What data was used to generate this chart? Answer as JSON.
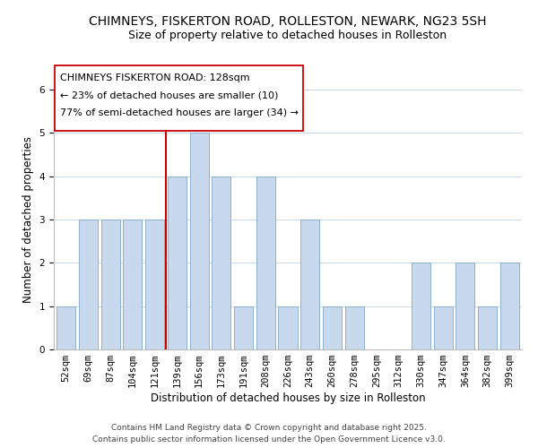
{
  "title": "CHIMNEYS, FISKERTON ROAD, ROLLESTON, NEWARK, NG23 5SH",
  "subtitle": "Size of property relative to detached houses in Rolleston",
  "xlabel": "Distribution of detached houses by size in Rolleston",
  "ylabel": "Number of detached properties",
  "categories": [
    "52sqm",
    "69sqm",
    "87sqm",
    "104sqm",
    "121sqm",
    "139sqm",
    "156sqm",
    "173sqm",
    "191sqm",
    "208sqm",
    "226sqm",
    "243sqm",
    "260sqm",
    "278sqm",
    "295sqm",
    "312sqm",
    "330sqm",
    "347sqm",
    "364sqm",
    "382sqm",
    "399sqm"
  ],
  "values": [
    1,
    3,
    3,
    3,
    3,
    4,
    5,
    4,
    1,
    4,
    1,
    3,
    1,
    1,
    0,
    0,
    2,
    1,
    2,
    1,
    2
  ],
  "bar_color": "#c8d9ed",
  "bar_edge_color": "#7fa8cc",
  "vline_x_index": 4.5,
  "vline_color": "#cc0000",
  "annotation_text_line1": "CHIMNEYS FISKERTON ROAD: 128sqm",
  "annotation_text_line2": "← 23% of detached houses are smaller (10)",
  "annotation_text_line3": "77% of semi-detached houses are larger (34) →",
  "ylim": [
    0,
    6
  ],
  "yticks": [
    0,
    1,
    2,
    3,
    4,
    5,
    6
  ],
  "footnote1": "Contains HM Land Registry data © Crown copyright and database right 2025.",
  "footnote2": "Contains public sector information licensed under the Open Government Licence v3.0.",
  "background_color": "#ffffff",
  "grid_color": "#c8d8e8",
  "title_fontsize": 10,
  "subtitle_fontsize": 9,
  "axis_label_fontsize": 8.5,
  "tick_fontsize": 7.5,
  "annotation_fontsize": 8,
  "footnote_fontsize": 6.5
}
